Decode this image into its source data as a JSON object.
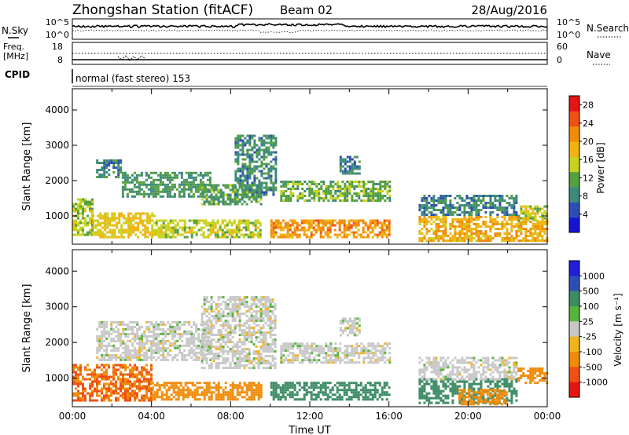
{
  "header": {
    "station": "Zhongshan Station (fitACF)",
    "beam": "Beam 02",
    "date": "28/Aug/2016"
  },
  "strips": {
    "nsky_label": "N.Sky",
    "nsky_ticks": [
      "10^5",
      "10^0"
    ],
    "nsearch_label": "N.Search",
    "nsearch_ticks": [
      "10^5",
      "10^0"
    ],
    "freq_label_1": "Freq.",
    "freq_label_2": "[MHz]",
    "freq_ticks": [
      "18",
      "8"
    ],
    "nave_label": "Nave",
    "nave_ticks": [
      "60",
      "0"
    ],
    "cpid_label": "CPID",
    "cpid_text": "normal (fast stereo) 153"
  },
  "chart_data": [
    {
      "type": "heatmap",
      "title": "",
      "xlabel": "",
      "ylabel": "Slant Range [km]",
      "xlim": [
        "00:00",
        "24:00"
      ],
      "ylim": [
        200,
        4600
      ],
      "y_ticks": [
        "1000",
        "2000",
        "3000",
        "4000"
      ],
      "colorbar_label": "Power [dB]",
      "colorbar_ticks": [
        "4",
        "8",
        "12",
        "16",
        "20",
        "24",
        "28"
      ],
      "colorbar_range": [
        0,
        30
      ],
      "regions": [
        {
          "t_start": 0.0,
          "t_end": 1.0,
          "r_min": 450,
          "r_max": 1500,
          "value": 14
        },
        {
          "t_start": 1.0,
          "t_end": 4.2,
          "r_min": 400,
          "r_max": 1100,
          "value": 17
        },
        {
          "t_start": 1.2,
          "t_end": 2.5,
          "r_min": 2100,
          "r_max": 2600,
          "value": 8
        },
        {
          "t_start": 2.5,
          "t_end": 7.0,
          "r_min": 1550,
          "r_max": 2250,
          "value": 10
        },
        {
          "t_start": 4.2,
          "t_end": 9.5,
          "r_min": 400,
          "r_max": 900,
          "value": 15
        },
        {
          "t_start": 6.5,
          "t_end": 9.5,
          "r_min": 1300,
          "r_max": 1900,
          "value": 11
        },
        {
          "t_start": 8.2,
          "t_end": 10.3,
          "r_min": 1600,
          "r_max": 3300,
          "value": 9
        },
        {
          "t_start": 10.0,
          "t_end": 16.0,
          "r_min": 400,
          "r_max": 900,
          "value": 21
        },
        {
          "t_start": 10.5,
          "t_end": 16.0,
          "r_min": 1450,
          "r_max": 2000,
          "value": 12
        },
        {
          "t_start": 13.5,
          "t_end": 14.5,
          "r_min": 2200,
          "r_max": 2700,
          "value": 8
        },
        {
          "t_start": 17.5,
          "t_end": 24.0,
          "r_min": 300,
          "r_max": 1000,
          "value": 19
        },
        {
          "t_start": 17.5,
          "t_end": 22.5,
          "r_min": 1000,
          "r_max": 1600,
          "value": 8
        },
        {
          "t_start": 22.5,
          "t_end": 24.0,
          "r_min": 850,
          "r_max": 1300,
          "value": 15
        }
      ]
    },
    {
      "type": "heatmap",
      "title": "",
      "xlabel": "Time UT",
      "ylabel": "Slant Range [km]",
      "xlim": [
        "00:00",
        "24:00"
      ],
      "ylim": [
        200,
        4600
      ],
      "x_ticks": [
        "00:00",
        "04:00",
        "08:00",
        "12:00",
        "16:00",
        "20:00",
        "00:00"
      ],
      "y_ticks": [
        "1000",
        "2000",
        "3000",
        "4000"
      ],
      "colorbar_label": "Velocity [m s⁻¹]",
      "colorbar_ticks": [
        "1000",
        "500",
        "100",
        "25",
        "-25",
        "-100",
        "-500",
        "-1000"
      ],
      "regions": [
        {
          "t_start": 0.0,
          "t_end": 4.0,
          "r_min": 400,
          "r_max": 1400,
          "value": -300
        },
        {
          "t_start": 1.2,
          "t_end": 7.0,
          "r_min": 1500,
          "r_max": 2600,
          "value": 0
        },
        {
          "t_start": 4.0,
          "t_end": 9.5,
          "r_min": 400,
          "r_max": 900,
          "value": -150
        },
        {
          "t_start": 6.5,
          "t_end": 10.3,
          "r_min": 1300,
          "r_max": 3300,
          "value": 0
        },
        {
          "t_start": 10.0,
          "t_end": 16.0,
          "r_min": 400,
          "r_max": 900,
          "value": 200
        },
        {
          "t_start": 10.5,
          "t_end": 16.0,
          "r_min": 1450,
          "r_max": 2000,
          "value": 0
        },
        {
          "t_start": 13.5,
          "t_end": 14.5,
          "r_min": 2200,
          "r_max": 2700,
          "value": 0
        },
        {
          "t_start": 17.5,
          "t_end": 22.5,
          "r_min": 300,
          "r_max": 1000,
          "value": 150
        },
        {
          "t_start": 19.5,
          "t_end": 22.0,
          "r_min": 300,
          "r_max": 700,
          "value": -200
        },
        {
          "t_start": 17.5,
          "t_end": 22.5,
          "r_min": 1000,
          "r_max": 1600,
          "value": 0
        },
        {
          "t_start": 22.5,
          "t_end": 24.0,
          "r_min": 850,
          "r_max": 1300,
          "value": -150
        }
      ]
    }
  ]
}
